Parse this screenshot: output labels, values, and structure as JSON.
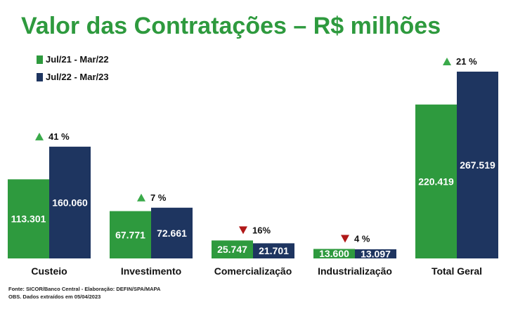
{
  "title": "Valor das Contratações – R$ milhões",
  "footer": {
    "source": "Fonte: SICOR/Banco Central - Elaboração: DEFIN/SPA/MAPA",
    "obs": "OBS. Dados extraídos em 05/04/2023"
  },
  "colors": {
    "title": "#2e9a3e",
    "green": "#2e9a3e",
    "navy": "#1e3560",
    "up": "#3aaa4a",
    "down": "#b01818"
  },
  "chart_data": {
    "type": "bar",
    "title": "Valor das Contratações – R$ milhões",
    "categories": [
      "Custeio",
      "Investimento",
      "Comercialização",
      "Industrialização",
      "Total Geral"
    ],
    "series": [
      {
        "name": "Jul/21 - Mar/22",
        "color": "#2e9a3e",
        "values": [
          113301,
          67771,
          25747,
          13600,
          220419
        ],
        "labels": [
          "113.301",
          "67.771",
          "25.747",
          "13.600",
          "220.419"
        ]
      },
      {
        "name": "Jul/22 - Mar/23",
        "color": "#1e3560",
        "values": [
          160060,
          72661,
          21701,
          13097,
          267519
        ],
        "labels": [
          "160.060",
          "72.661",
          "21.701",
          "13.097",
          "267.519"
        ]
      }
    ],
    "changes": [
      {
        "direction": "up",
        "label": "41 %"
      },
      {
        "direction": "up",
        "label": "7 %"
      },
      {
        "direction": "down",
        "label": "16%"
      },
      {
        "direction": "down",
        "label": "4 %"
      },
      {
        "direction": "up",
        "label": "21 %"
      }
    ],
    "legend_position": "top-left",
    "grid": false
  }
}
